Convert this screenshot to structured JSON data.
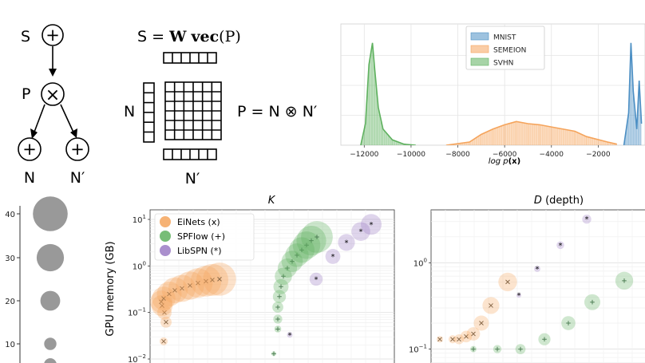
{
  "diagram": {
    "node_labels": {
      "S": "S",
      "P": "P",
      "N": "N",
      "N_prime": "N′"
    },
    "node_symbols": {
      "sum": "+",
      "product": "×"
    },
    "matrix_labels": {
      "N": "N",
      "N_prime": "N′"
    },
    "eq_sum": {
      "lhs": "S =",
      "w": "W",
      "vec": "vec",
      "arg": "(P)"
    },
    "eq_product": {
      "p": "P = N",
      "op": "⊗",
      "np": "N′"
    }
  },
  "chart_data": [
    {
      "type": "area",
      "title": "",
      "xlabel_prefix": "log",
      "xlabel_fn": "p",
      "xlabel_arg": "(x)",
      "xlim": [
        -13000,
        0
      ],
      "x_ticks": [
        -12000,
        -10000,
        -8000,
        -6000,
        -4000,
        -2000
      ],
      "x_tick_labels": [
        "−12000",
        "−10000",
        "−8000",
        "−6000",
        "−4000",
        "−2000"
      ],
      "grid": true,
      "legend_position": "top-center",
      "series": [
        {
          "name": "MNIST",
          "color": "#4c8fc4",
          "points": [
            [
              -900,
              0
            ],
            [
              -700,
              0.3
            ],
            [
              -600,
              0.95
            ],
            [
              -500,
              0.5
            ],
            [
              -350,
              0.15
            ],
            [
              -250,
              0.6
            ],
            [
              -150,
              0.2
            ]
          ]
        },
        {
          "name": "SEMEION",
          "color": "#f5a45c",
          "points": [
            [
              -8500,
              0
            ],
            [
              -7500,
              0.03
            ],
            [
              -7000,
              0.1
            ],
            [
              -6500,
              0.15
            ],
            [
              -6000,
              0.19
            ],
            [
              -5500,
              0.22
            ],
            [
              -5000,
              0.2
            ],
            [
              -4500,
              0.19
            ],
            [
              -4000,
              0.17
            ],
            [
              -3000,
              0.13
            ],
            [
              -2500,
              0.08
            ],
            [
              -1600,
              0.03
            ],
            [
              -1200,
              0.01
            ]
          ]
        },
        {
          "name": "SVHN",
          "color": "#5fb15f",
          "points": [
            [
              -12150,
              0
            ],
            [
              -11950,
              0.2
            ],
            [
              -11800,
              0.75
            ],
            [
              -11650,
              0.95
            ],
            [
              -11550,
              0.7
            ],
            [
              -11400,
              0.35
            ],
            [
              -11200,
              0.15
            ],
            [
              -10800,
              0.05
            ],
            [
              -10300,
              0.01
            ],
            [
              -9800,
              0
            ]
          ]
        }
      ]
    },
    {
      "type": "scatter",
      "title": "",
      "xlabel": "",
      "ylabel": "",
      "y_ticks": [
        40,
        30,
        20,
        10
      ],
      "size_legend": [
        40,
        30,
        20,
        10
      ]
    },
    {
      "type": "scatter",
      "title": "K",
      "ylabel": "GPU memory (GB)",
      "yscale": "log",
      "ylim": [
        0.01,
        18
      ],
      "y_ticks": [
        {
          "exp": "1",
          "v": 10
        },
        {
          "exp": "0",
          "v": 1
        },
        {
          "exp": "−1",
          "v": 0.1
        },
        {
          "exp": "−2",
          "v": 0.01
        }
      ],
      "legend_position": "top-left",
      "grid": true,
      "series": [
        {
          "name": "EiNets (x)",
          "color": "#f5a45c",
          "marker": "x",
          "values": [
            0.024,
            0.062,
            0.1,
            0.14,
            0.17,
            0.2,
            0.25,
            0.3,
            0.33,
            0.38,
            0.43,
            0.47,
            0.5,
            0.52
          ]
        },
        {
          "name": "SPFlow (+)",
          "color": "#5fb15f",
          "marker": "+",
          "values": [
            0.013,
            0.044,
            0.072,
            0.13,
            0.22,
            0.36,
            0.6,
            0.9,
            1.25,
            1.7,
            2.2,
            2.8,
            3.5,
            4.2
          ]
        },
        {
          "name": "LibSPN (*)",
          "color": "#9b7bc4",
          "marker": "*",
          "values": [
            0.033,
            0.52,
            1.6,
            3.2,
            5.5,
            7.8
          ]
        }
      ]
    },
    {
      "type": "scatter",
      "title": "D (depth)",
      "yscale": "log",
      "y_ticks": [
        {
          "exp": "0",
          "v": 1
        },
        {
          "exp": "−1",
          "v": 0.1
        }
      ],
      "grid": true,
      "series": [
        {
          "name": "EiNets (x)",
          "color": "#f5a45c",
          "marker": "x",
          "values": [
            0.13,
            0.13,
            0.13,
            0.14,
            0.15,
            0.2,
            0.32,
            0.6
          ]
        },
        {
          "name": "SPFlow (+)",
          "color": "#5fb15f",
          "marker": "+",
          "values": [
            0.1,
            0.1,
            0.1,
            0.13,
            0.2,
            0.35,
            0.62
          ]
        },
        {
          "name": "LibSPN (*)",
          "color": "#9b7bc4",
          "marker": "*",
          "values": [
            0.42,
            0.85,
            1.6,
            3.2,
            6.5
          ]
        }
      ]
    }
  ]
}
